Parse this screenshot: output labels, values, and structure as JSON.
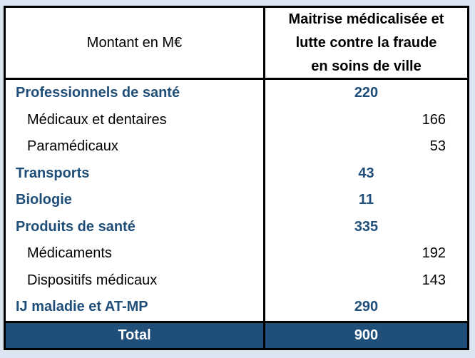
{
  "page": {
    "background_color": "#DBE5F1"
  },
  "table": {
    "colors": {
      "accent_navy": "#1F4E79",
      "border": "#000000",
      "cell_background": "#FFFFFF",
      "body_text": "#000000",
      "total_text": "#FFFFFF"
    },
    "header": {
      "col1": "Montant en M€",
      "col2_lines": [
        "Maitrise médicalisée et",
        "lutte contre la fraude",
        "en soins de ville"
      ]
    },
    "rows": [
      {
        "label": "Professionnels de santé",
        "value": "220",
        "type": "category"
      },
      {
        "label": "Médicaux et dentaires",
        "value": "166",
        "type": "sub"
      },
      {
        "label": "Paramédicaux",
        "value": "53",
        "type": "sub"
      },
      {
        "label": "Transports",
        "value": "43",
        "type": "category"
      },
      {
        "label": "Biologie",
        "value": "11",
        "type": "category"
      },
      {
        "label": "Produits de santé",
        "value": "335",
        "type": "category"
      },
      {
        "label": "Médicaments",
        "value": "192",
        "type": "sub"
      },
      {
        "label": "Dispositifs médicaux",
        "value": "143",
        "type": "sub"
      },
      {
        "label": "IJ maladie et AT-MP",
        "value": "290",
        "type": "category"
      }
    ],
    "total": {
      "label": "Total",
      "value": "900"
    }
  }
}
